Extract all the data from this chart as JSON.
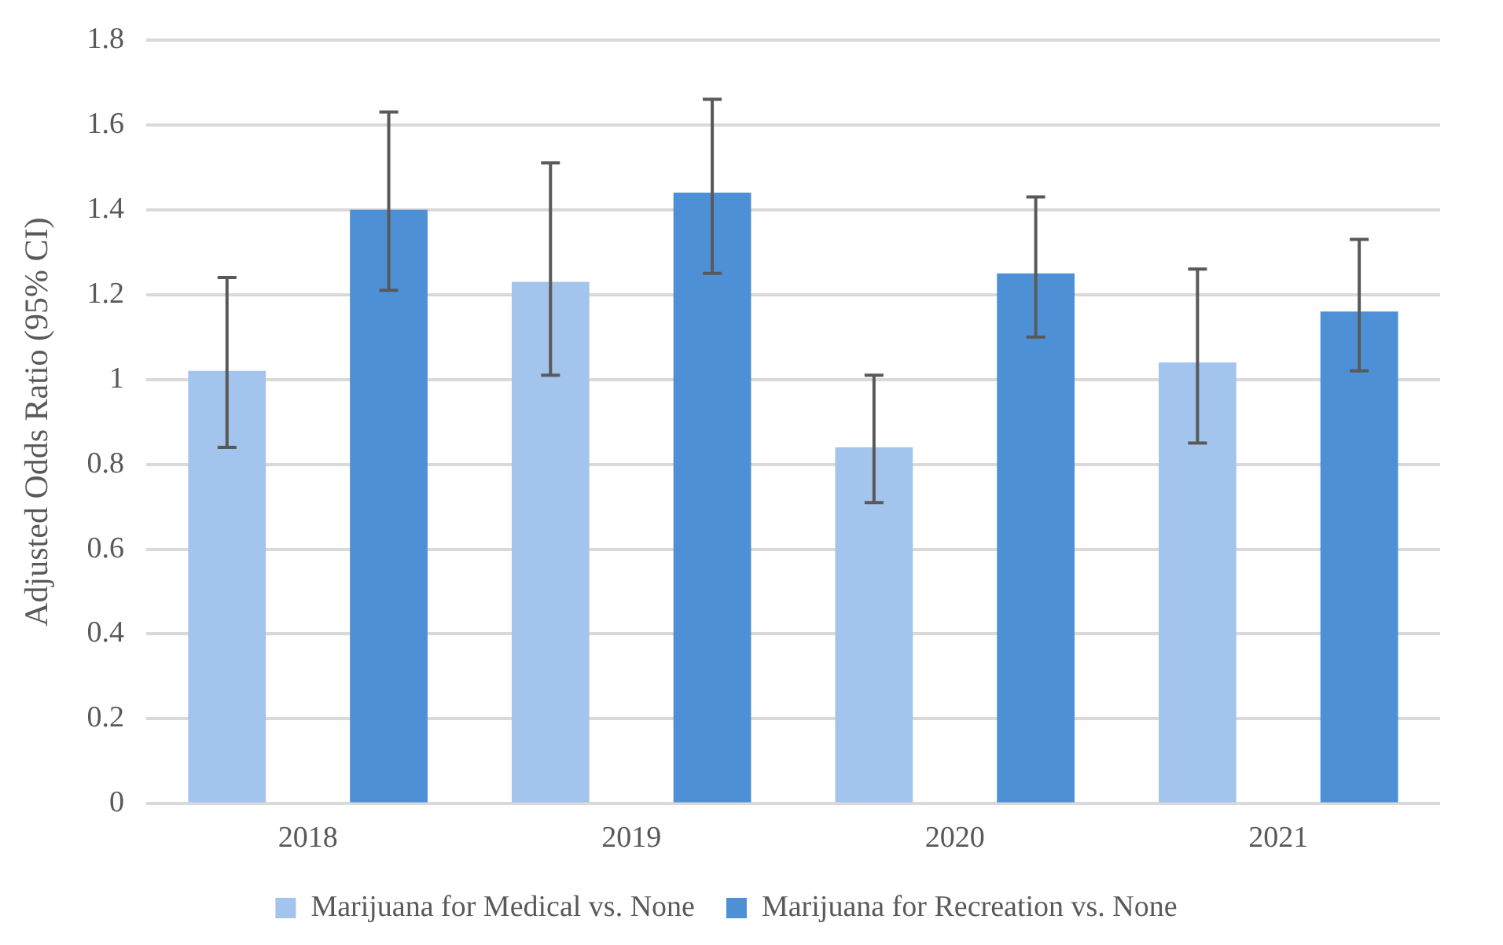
{
  "chart_data": {
    "type": "bar",
    "ylabel": "Adjusted Odds Ratio (95% CI)",
    "categories": [
      "2018",
      "2019",
      "2020",
      "2021"
    ],
    "series": [
      {
        "name": "Marijuana for Medical vs. None",
        "color": "#a3c4ec",
        "values": [
          1.02,
          1.23,
          0.84,
          1.04
        ],
        "errors": [
          [
            0.84,
            1.24
          ],
          [
            1.01,
            1.51
          ],
          [
            0.71,
            1.01
          ],
          [
            0.85,
            1.26
          ]
        ]
      },
      {
        "name": "Marijuana for Recreation vs. None",
        "color": "#4e90d6",
        "values": [
          1.4,
          1.44,
          1.25,
          1.16
        ],
        "errors": [
          [
            1.21,
            1.63
          ],
          [
            1.25,
            1.66
          ],
          [
            1.1,
            1.43
          ],
          [
            1.02,
            1.33
          ]
        ]
      }
    ],
    "ylim": [
      0,
      1.8
    ],
    "yticks": [
      0,
      0.2,
      0.4,
      0.6,
      0.8,
      1,
      1.2,
      1.4,
      1.6,
      1.8
    ],
    "grid": "y",
    "legend": "bottom"
  }
}
